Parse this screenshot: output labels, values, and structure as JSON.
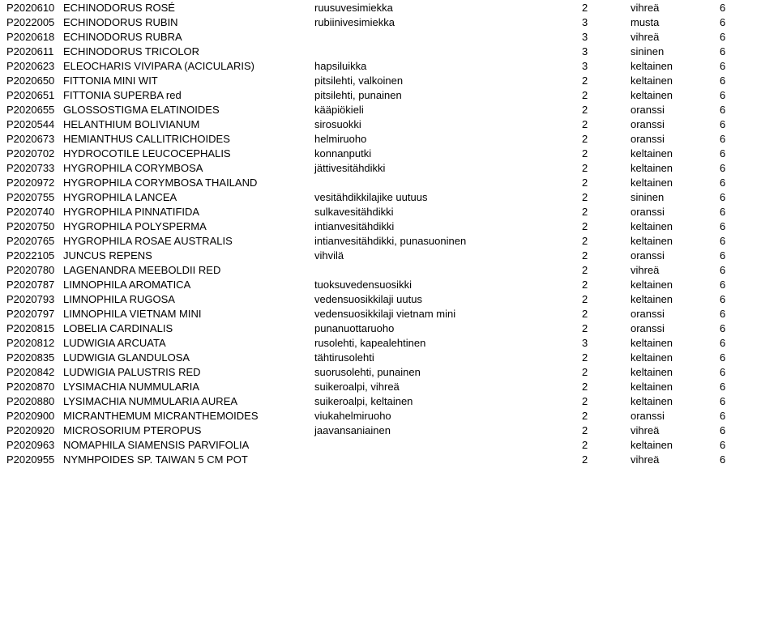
{
  "textColor": "#000000",
  "backgroundColor": "#ffffff",
  "fontSize": 13,
  "rows": [
    {
      "code": "P2020610",
      "name": "ECHINODORUS ROSÉ",
      "finnish": "ruusuvesimiekka",
      "qty": "2",
      "color": "vihreä",
      "last": "6"
    },
    {
      "code": "P2022005",
      "name": "ECHINODORUS RUBIN",
      "finnish": "rubiinivesimiekka",
      "qty": "3",
      "color": "musta",
      "last": "6"
    },
    {
      "code": "P2020618",
      "name": "ECHINODORUS RUBRA",
      "finnish": "",
      "qty": "3",
      "color": "vihreä",
      "last": "6"
    },
    {
      "code": "P2020611",
      "name": "ECHINODORUS TRICOLOR",
      "finnish": "",
      "qty": "3",
      "color": "sininen",
      "last": "6"
    },
    {
      "code": "P2020623",
      "name": "ELEOCHARIS VIVIPARA (ACICULARIS)",
      "finnish": "hapsiluikka",
      "qty": "3",
      "color": "keltainen",
      "last": "6"
    },
    {
      "code": "P2020650",
      "name": "FITTONIA MINI WIT",
      "finnish": "pitsilehti, valkoinen",
      "qty": "2",
      "color": "keltainen",
      "last": "6"
    },
    {
      "code": "P2020651",
      "name": "FITTONIA SUPERBA red",
      "finnish": "pitsilehti, punainen",
      "qty": "2",
      "color": "keltainen",
      "last": "6"
    },
    {
      "code": "P2020655",
      "name": "GLOSSOSTIGMA ELATINOIDES",
      "finnish": "kääpiökieli",
      "qty": "2",
      "color": "oranssi",
      "last": "6"
    },
    {
      "code": "P2020544",
      "name": "HELANTHIUM BOLIVIANUM",
      "finnish": "sirosuokki",
      "qty": "2",
      "color": "oranssi",
      "last": "6"
    },
    {
      "code": "P2020673",
      "name": "HEMIANTHUS CALLITRICHOIDES",
      "finnish": "helmiruoho",
      "qty": "2",
      "color": "oranssi",
      "last": "6"
    },
    {
      "code": "P2020702",
      "name": "HYDROCOTILE LEUCOCEPHALIS",
      "finnish": "konnanputki",
      "qty": "2",
      "color": "keltainen",
      "last": "6"
    },
    {
      "code": "P2020733",
      "name": "HYGROPHILA CORYMBOSA",
      "finnish": "jättivesitähdikki",
      "qty": "2",
      "color": "keltainen",
      "last": "6"
    },
    {
      "code": "P2020972",
      "name": "HYGROPHILA CORYMBOSA THAILAND",
      "finnish": "",
      "qty": "2",
      "color": "keltainen",
      "last": "6"
    },
    {
      "code": "P2020755",
      "name": "HYGROPHILA LANCEA",
      "finnish": "vesitähdikkilajike uutuus",
      "qty": "2",
      "color": "sininen",
      "last": "6"
    },
    {
      "code": "P2020740",
      "name": "HYGROPHILA PINNATIFIDA",
      "finnish": "sulkavesitähdikki",
      "qty": "2",
      "color": "oranssi",
      "last": "6"
    },
    {
      "code": "P2020750",
      "name": "HYGROPHILA POLYSPERMA",
      "finnish": "intianvesitähdikki",
      "qty": "2",
      "color": "keltainen",
      "last": "6"
    },
    {
      "code": "P2020765",
      "name": "HYGROPHILA ROSAE AUSTRALIS",
      "finnish": "intianvesitähdikki, punasuoninen",
      "qty": "2",
      "color": "keltainen",
      "last": "6"
    },
    {
      "code": "P2022105",
      "name": "JUNCUS REPENS",
      "finnish": "vihvilä",
      "qty": "2",
      "color": "oranssi",
      "last": "6"
    },
    {
      "code": "P2020780",
      "name": "LAGENANDRA MEEBOLDII RED",
      "finnish": "",
      "qty": "2",
      "color": "vihreä",
      "last": "6"
    },
    {
      "code": "P2020787",
      "name": "LIMNOPHILA AROMATICA",
      "finnish": "tuoksuvedensuosikki",
      "qty": "2",
      "color": "keltainen",
      "last": "6"
    },
    {
      "code": "P2020793",
      "name": "LIMNOPHILA RUGOSA",
      "finnish": "vedensuosikkilaji uutus",
      "qty": "2",
      "color": "keltainen",
      "last": "6"
    },
    {
      "code": "P2020797",
      "name": "LIMNOPHILA VIETNAM MINI",
      "finnish": "vedensuosikkilaji vietnam mini",
      "qty": "2",
      "color": "oranssi",
      "last": "6"
    },
    {
      "code": "P2020815",
      "name": "LOBELIA CARDINALIS",
      "finnish": "punanuottaruoho",
      "qty": "2",
      "color": "oranssi",
      "last": "6"
    },
    {
      "code": "P2020812",
      "name": "LUDWIGIA ARCUATA",
      "finnish": "rusolehti, kapealehtinen",
      "qty": "3",
      "color": "keltainen",
      "last": "6"
    },
    {
      "code": "P2020835",
      "name": "LUDWIGIA GLANDULOSA",
      "finnish": "tähtirusolehti",
      "qty": "2",
      "color": "keltainen",
      "last": "6"
    },
    {
      "code": "P2020842",
      "name": "LUDWIGIA PALUSTRIS RED",
      "finnish": "suorusolehti, punainen",
      "qty": "2",
      "color": "keltainen",
      "last": "6"
    },
    {
      "code": "P2020870",
      "name": "LYSIMACHIA NUMMULARIA",
      "finnish": "suikeroalpi, vihreä",
      "qty": "2",
      "color": "keltainen",
      "last": "6"
    },
    {
      "code": "P2020880",
      "name": "LYSIMACHIA NUMMULARIA AUREA",
      "finnish": "suikeroalpi, keltainen",
      "qty": "2",
      "color": "keltainen",
      "last": "6"
    },
    {
      "code": "P2020900",
      "name": "MICRANTHEMUM MICRANTHEMOIDES",
      "finnish": "viukahelmiruoho",
      "qty": "2",
      "color": "oranssi",
      "last": "6"
    },
    {
      "code": "P2020920",
      "name": "MICROSORIUM PTEROPUS",
      "finnish": "jaavansaniainen",
      "qty": "2",
      "color": "vihreä",
      "last": "6"
    },
    {
      "code": "P2020963",
      "name": "NOMAPHILA SIAMENSIS PARVIFOLIA",
      "finnish": "",
      "qty": "2",
      "color": "keltainen",
      "last": "6"
    },
    {
      "code": "P2020955",
      "name": "NYMHPOIDES SP. TAIWAN 5 CM POT",
      "finnish": "",
      "qty": "2",
      "color": "vihreä",
      "last": "6"
    }
  ]
}
